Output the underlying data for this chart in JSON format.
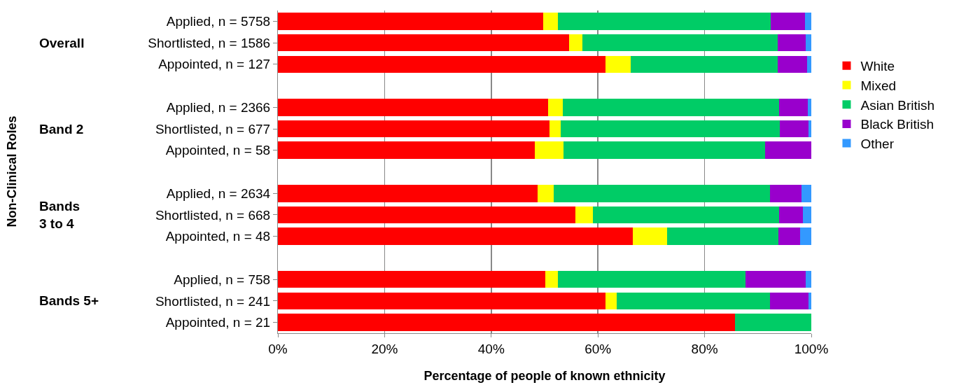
{
  "chart_data": {
    "type": "bar",
    "orientation": "horizontal",
    "stacked": true,
    "categories": [
      "Applied, n = 5758",
      "Shortlisted, n = 1586",
      "Appointed, n = 127",
      null,
      "Applied, n = 2366",
      "Shortlisted, n = 677",
      "Appointed, n = 58",
      null,
      "Applied, n = 2634",
      "Shortlisted, n = 668",
      "Appointed, n = 48",
      null,
      "Applied, n = 758",
      "Shortlisted, n = 241",
      "Appointed, n = 21"
    ],
    "series": [
      {
        "name": "White",
        "color": "#ff0000",
        "values": [
          49.7,
          54.6,
          61.4,
          null,
          50.7,
          50.9,
          48.2,
          null,
          48.7,
          55.8,
          66.6,
          null,
          50.1,
          61.4,
          85.7
        ]
      },
      {
        "name": "Mixed",
        "color": "#ffff00",
        "values": [
          2.8,
          2.5,
          4.7,
          null,
          2.7,
          2.1,
          5.3,
          null,
          3.0,
          3.2,
          6.3,
          null,
          2.4,
          2.1,
          0
        ]
      },
      {
        "name": "Asian British",
        "color": "#00cc66",
        "values": [
          39.9,
          36.6,
          27.6,
          null,
          40.6,
          41.1,
          37.9,
          null,
          40.6,
          34.9,
          20.9,
          null,
          35.1,
          28.7,
          14.3
        ]
      },
      {
        "name": "Black British",
        "color": "#9900cc",
        "values": [
          6.4,
          5.3,
          5.5,
          null,
          5.3,
          5.4,
          8.6,
          null,
          5.9,
          4.5,
          4.1,
          null,
          11.4,
          7.3,
          0
        ]
      },
      {
        "name": "Other",
        "color": "#3399ff",
        "values": [
          1.2,
          1.0,
          0.8,
          null,
          0.7,
          0.5,
          0,
          null,
          1.8,
          1.6,
          2.1,
          null,
          1.0,
          0.5,
          0
        ]
      }
    ],
    "xlabel": "Percentage of people of known ethnicity",
    "annotations": [
      "Non-Clinical Roles",
      "Overall",
      "Band 2",
      "Bands 3 to 4",
      "Bands 5+"
    ],
    "xlim": [
      0,
      100
    ],
    "xticks": [
      {
        "value": 0,
        "label": "0%"
      },
      {
        "value": 20,
        "label": "20%"
      },
      {
        "value": 40,
        "label": "40%"
      },
      {
        "value": 60,
        "label": "60%"
      },
      {
        "value": 80,
        "label": "80%"
      },
      {
        "value": 100,
        "label": "100%"
      }
    ],
    "grid": "x",
    "legend": "right"
  }
}
